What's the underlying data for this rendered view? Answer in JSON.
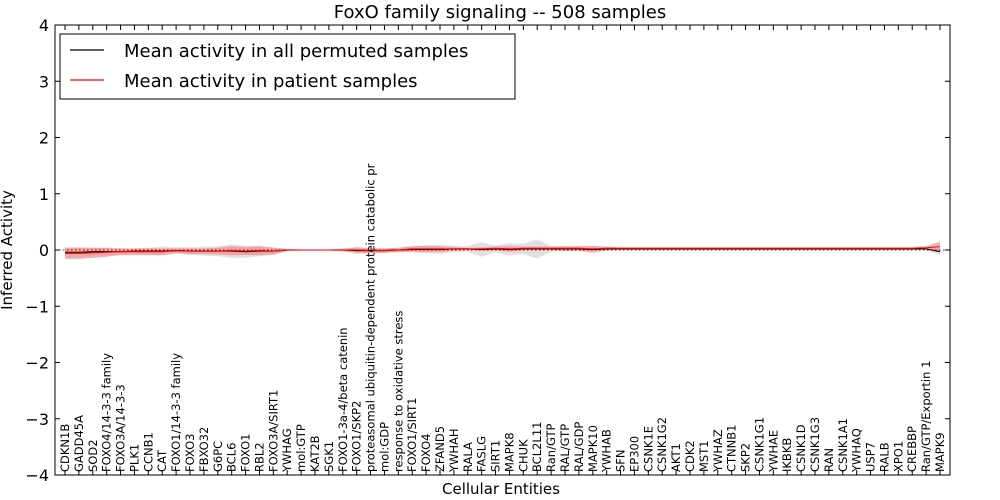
{
  "chart_data": {
    "type": "line",
    "title": "FoxO family signaling -- 508 samples",
    "xlabel": "Cellular Entities",
    "ylabel": "Inferred Activity",
    "ylim": [
      -4,
      4
    ],
    "yticks": [
      -4,
      -3,
      -2,
      -1,
      0,
      1,
      2,
      3,
      4
    ],
    "ytick_labels": [
      "−4",
      "−3",
      "−2",
      "−1",
      "0",
      "1",
      "2",
      "3",
      "4"
    ],
    "legend": {
      "position": "top-left",
      "entries": [
        {
          "label": "Mean activity in all permuted samples",
          "color": "#000000"
        },
        {
          "label": "Mean activity in patient samples",
          "color": "#ff0000"
        }
      ]
    },
    "categories": [
      "CDKN1B",
      "GADD45A",
      "SOD2",
      "FOXO4/14-3-3 family",
      "FOXO3A/14-3-3",
      "PLK1",
      "CCNB1",
      "CAT",
      "FOXO1/14-3-3 family",
      "FOXO3",
      "FBXO32",
      "G6PC",
      "BCL6",
      "FOXO1",
      "RBL2",
      "FOXO3A/SIRT1",
      "YWHAG",
      "mol:GTP",
      "KAT2B",
      "SGK1",
      "FOXO1-3a-4/beta catenin",
      "FOXO1/SKP2",
      "proteasomal ubiquitin-dependent protein catabolic pr",
      "mol:GDP",
      "response to oxidative stress",
      "FOXO1/SIRT1",
      "FOXO4",
      "ZFAND5",
      "YWHAH",
      "RALA",
      "FASLG",
      "SIRT1",
      "MAPK8",
      "CHUK",
      "BCL2L11",
      "Ran/GTP",
      "RAL/GTP",
      "RAL/GDP",
      "MAPK10",
      "YWHAB",
      "SFN",
      "EP300",
      "CSNK1E",
      "CSNK1G2",
      "AKT1",
      "CDK2",
      "MST1",
      "YWHAZ",
      "CTNNB1",
      "SKP2",
      "CSNK1G1",
      "YWHAE",
      "IKBKB",
      "CSNK1D",
      "CSNK1G3",
      "RAN",
      "CSNK1A1",
      "YWHAQ",
      "USP7",
      "RALB",
      "XPO1",
      "CREBBP",
      "Ran/GTP/Exportin 1",
      "MAPK9"
    ],
    "series": [
      {
        "name": "Mean activity in all permuted samples",
        "color": "#000000",
        "band_color": "#bdbdbd",
        "values": [
          -0.04,
          -0.04,
          -0.03,
          -0.03,
          -0.03,
          -0.02,
          -0.02,
          -0.02,
          -0.01,
          -0.02,
          -0.02,
          -0.02,
          -0.02,
          -0.03,
          -0.02,
          -0.02,
          0,
          0,
          0,
          0,
          0,
          -0.01,
          -0.01,
          -0.01,
          0,
          0.01,
          0.01,
          0.01,
          0.02,
          0.02,
          0.01,
          0.02,
          0.01,
          0.02,
          0.02,
          0.02,
          0.02,
          0.02,
          0.01,
          0.02,
          0.02,
          0.02,
          0.02,
          0.02,
          0.02,
          0.02,
          0.02,
          0.02,
          0.02,
          0.02,
          0.02,
          0.02,
          0.02,
          0.02,
          0.02,
          0.02,
          0.02,
          0.02,
          0.02,
          0.02,
          0.02,
          0.02,
          0.02,
          -0.03
        ],
        "spread": [
          0.09,
          0.09,
          0.07,
          0.06,
          0.05,
          0.05,
          0.06,
          0.08,
          0.06,
          0.07,
          0.08,
          0.09,
          0.12,
          0.11,
          0.09,
          0.07,
          0.02,
          0.01,
          0.01,
          0.01,
          0.03,
          0.06,
          0.05,
          0.04,
          0.04,
          0.05,
          0.07,
          0.08,
          0.06,
          0.05,
          0.13,
          0.06,
          0.11,
          0.09,
          0.17,
          0.05,
          0.04,
          0.04,
          0.07,
          0.03,
          0.02,
          0.02,
          0.02,
          0.02,
          0.02,
          0.02,
          0.02,
          0.02,
          0.02,
          0.02,
          0.02,
          0.02,
          0.02,
          0.02,
          0.02,
          0.02,
          0.02,
          0.02,
          0.02,
          0.02,
          0.02,
          0.02,
          0.02,
          0.06
        ]
      },
      {
        "name": "Mean activity in patient samples",
        "color": "#ff0000",
        "band_color": "#f08080",
        "values": [
          -0.06,
          -0.06,
          -0.05,
          -0.04,
          -0.03,
          -0.03,
          -0.03,
          -0.03,
          -0.01,
          -0.02,
          -0.02,
          -0.02,
          -0.01,
          -0.02,
          -0.01,
          -0.02,
          0,
          0,
          0,
          0,
          0,
          0,
          -0.01,
          -0.01,
          0,
          0.02,
          0.02,
          0.02,
          0.02,
          0.02,
          0.02,
          0.03,
          0.02,
          0.03,
          0.03,
          0.03,
          0.03,
          0.03,
          0.02,
          0.03,
          0.03,
          0.03,
          0.03,
          0.03,
          0.03,
          0.03,
          0.03,
          0.03,
          0.03,
          0.03,
          0.03,
          0.03,
          0.03,
          0.03,
          0.03,
          0.03,
          0.03,
          0.03,
          0.03,
          0.03,
          0.03,
          0.03,
          0.04,
          0.06
        ],
        "spread": [
          0.1,
          0.1,
          0.09,
          0.08,
          0.06,
          0.06,
          0.06,
          0.06,
          0.04,
          0.05,
          0.05,
          0.06,
          0.08,
          0.07,
          0.08,
          0.06,
          0.02,
          0.01,
          0.01,
          0.01,
          0.02,
          0.05,
          0.04,
          0.04,
          0.04,
          0.05,
          0.06,
          0.05,
          0.03,
          0.02,
          0.03,
          0.03,
          0.05,
          0.03,
          0.03,
          0.03,
          0.04,
          0.04,
          0.05,
          0.03,
          0.02,
          0.02,
          0.02,
          0.02,
          0.02,
          0.02,
          0.02,
          0.02,
          0.02,
          0.02,
          0.02,
          0.02,
          0.02,
          0.02,
          0.02,
          0.02,
          0.02,
          0.02,
          0.02,
          0.02,
          0.02,
          0.02,
          0.03,
          0.09
        ]
      }
    ]
  }
}
